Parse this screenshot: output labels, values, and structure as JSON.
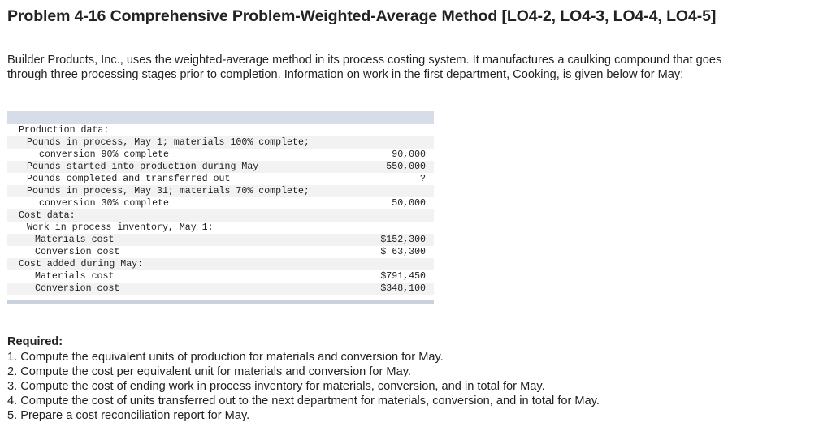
{
  "title": "Problem 4-16 Comprehensive Problem-Weighted-Average Method [LO4-2, LO4-3, LO4-4, LO4-5]",
  "intro": "Builder Products, Inc., uses the weighted-average method in its process costing system. It manufactures a caulking compound that goes through three processing stages prior to completion. Information on work in the first department, Cooking, is given below for May:",
  "table": {
    "rows": [
      {
        "label": "Production data:",
        "value": "",
        "indent": 0
      },
      {
        "label": "Pounds in process, May 1; materials 100% complete;",
        "value": "",
        "indent": 1
      },
      {
        "label": "conversion 90% complete",
        "value": "90,000",
        "indent": 2
      },
      {
        "label": "Pounds started into production during May",
        "value": "550,000",
        "indent": 1
      },
      {
        "label": "Pounds completed and transferred out",
        "value": "?",
        "indent": 1
      },
      {
        "label": "Pounds in process, May 31; materials 70% complete;",
        "value": "",
        "indent": 1
      },
      {
        "label": "conversion 30% complete",
        "value": "50,000",
        "indent": 2
      },
      {
        "label": "Cost data:",
        "value": "",
        "indent": 0
      },
      {
        "label": "Work in process inventory, May 1:",
        "value": "",
        "indent": 1
      },
      {
        "label": "Materials cost",
        "value": "$152,300",
        "indent": 3
      },
      {
        "label": "Conversion cost",
        "value": "$ 63,300",
        "indent": 3
      },
      {
        "label": "Cost added during May:",
        "value": "",
        "indent": 0
      },
      {
        "label": "Materials cost",
        "value": "$791,450",
        "indent": 3
      },
      {
        "label": "Conversion cost",
        "value": "$348,100",
        "indent": 3
      }
    ]
  },
  "required": {
    "heading": "Required:",
    "items": [
      "1. Compute the equivalent units of production for materials and conversion for May.",
      "2. Compute the cost per equivalent unit for materials and conversion for May.",
      "3. Compute the cost of ending work in process inventory for materials, conversion, and in total for May.",
      "4. Compute the cost of units transferred out to the next department for materials, conversion, and in total for May.",
      "5. Prepare a cost reconciliation report for May."
    ]
  }
}
